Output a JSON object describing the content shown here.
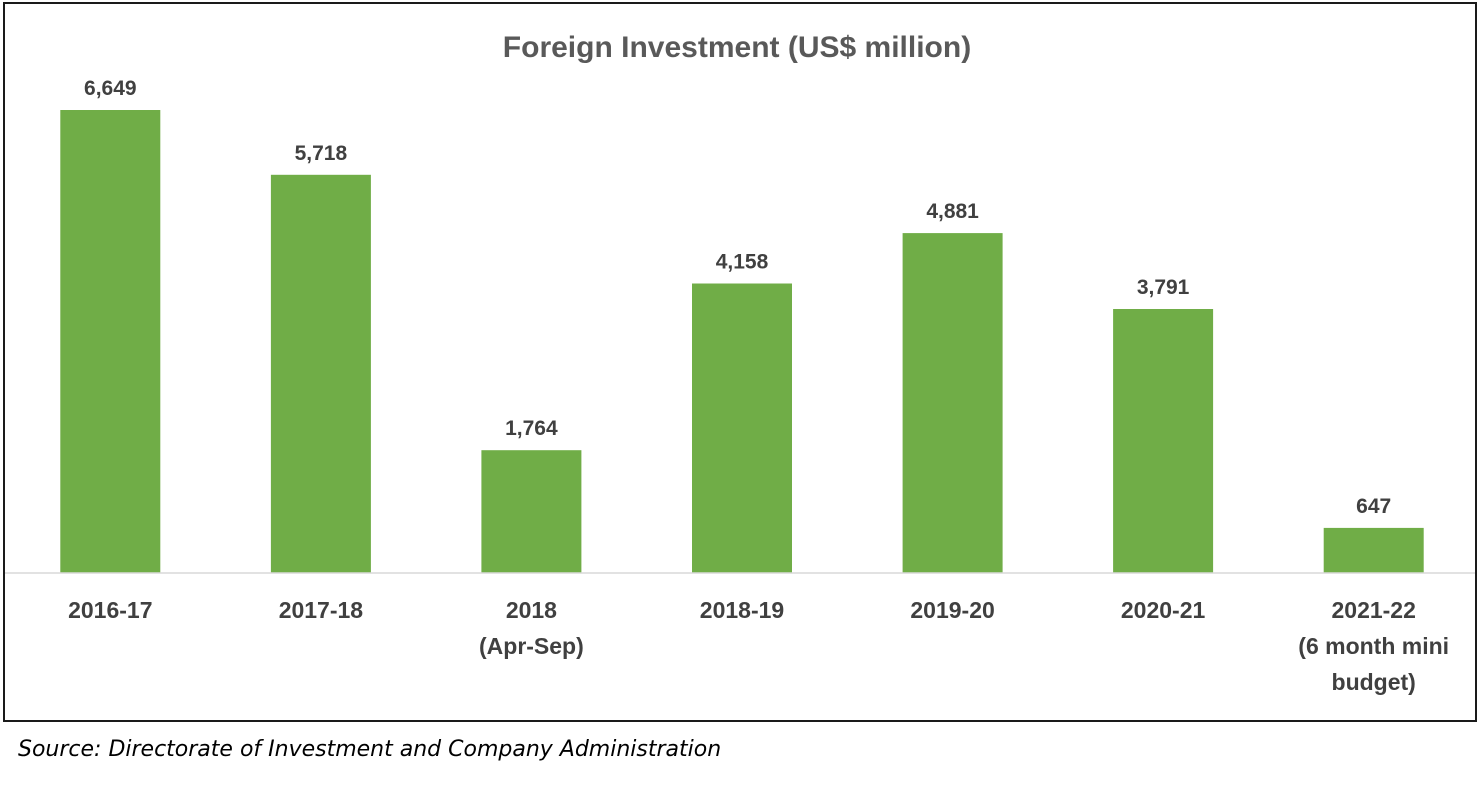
{
  "chart_data": {
    "type": "bar",
    "title": "Foreign Investment (US$ million)",
    "categories": [
      [
        "2016-17"
      ],
      [
        "2017-18"
      ],
      [
        "2018",
        "(Apr-Sep)"
      ],
      [
        "2018-19"
      ],
      [
        "2019-20"
      ],
      [
        "2020-21"
      ],
      [
        "2021-22",
        "(6 month mini",
        "budget)"
      ]
    ],
    "values": [
      6649,
      5718,
      1764,
      4158,
      4881,
      3791,
      647
    ],
    "data_labels": [
      "6,649",
      "5,718",
      "1,764",
      "4,158",
      "4,881",
      "3,791",
      "647"
    ],
    "xlabel": "",
    "ylabel": "",
    "ylim": [
      0,
      7000
    ],
    "grid": false,
    "legend": "none",
    "bar_color": "#70AD47",
    "axis_color": "#D9D9D9"
  },
  "source": "Source: Directorate of Investment and Company Administration"
}
